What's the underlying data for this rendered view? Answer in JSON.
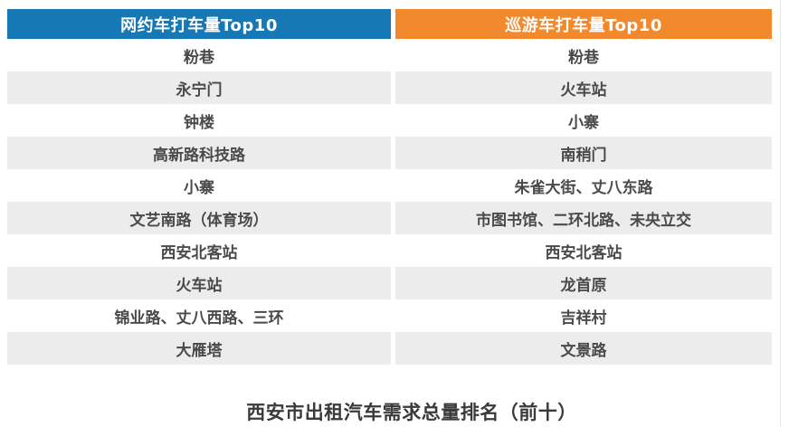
{
  "colors": {
    "left_header": "#1678b4",
    "right_header": "#f28a2d",
    "stripe_row": "#ececec",
    "row_text": "#4a4a4a",
    "header_text": "#ffffff",
    "caption_text": "#3a3a3a"
  },
  "chart_data": {
    "type": "table",
    "title": "西安市出租汽车需求总量排名（前十）",
    "columns": [
      "网约车打车量Top10",
      "巡游车打车量Top10"
    ],
    "rows": [
      [
        "粉巷",
        "粉巷"
      ],
      [
        "永宁门",
        "火车站"
      ],
      [
        "钟楼",
        "小寨"
      ],
      [
        "高新路科技路",
        "南稍门"
      ],
      [
        "小寨",
        "朱雀大街、丈八东路"
      ],
      [
        "文艺南路（体育场）",
        "市图书馆、二环北路、未央立交"
      ],
      [
        "西安北客站",
        "西安北客站"
      ],
      [
        "火车站",
        "龙首原"
      ],
      [
        "锦业路、丈八西路、三环",
        "吉祥村"
      ],
      [
        "大雁塔",
        "文景路"
      ]
    ],
    "layout": {
      "legend": "none",
      "grid": "off",
      "stripes": "odd data rows shaded light gray, column gap divider white"
    }
  }
}
